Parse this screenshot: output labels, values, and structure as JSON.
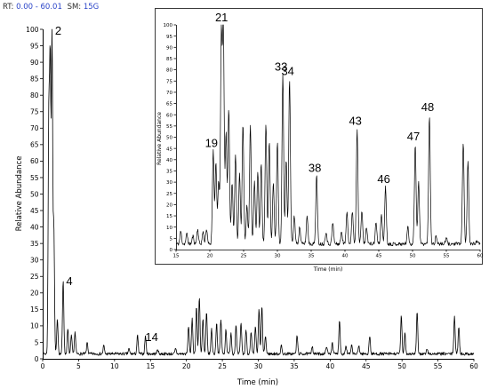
{
  "header": {
    "rt_label": "RT:",
    "rt_value": "0.00 - 60.01",
    "sm_label": "SM:",
    "sm_value": "15G"
  },
  "colors": {
    "header_label": "#2a2a2a",
    "header_value": "#2a44c8",
    "trace": "#000000",
    "inset_border": "#3a3a3a"
  },
  "chart_data": [
    {
      "type": "line",
      "xlabel": "Time (min)",
      "ylabel": "Relative Abundance",
      "xlim": [
        0,
        60
      ],
      "ylim": [
        0,
        100
      ],
      "xticks": [
        0,
        5,
        10,
        15,
        20,
        25,
        30,
        35,
        40,
        45,
        50,
        55,
        60
      ],
      "yticks": [
        0,
        5,
        10,
        15,
        20,
        25,
        30,
        35,
        40,
        45,
        50,
        55,
        60,
        65,
        70,
        75,
        80,
        85,
        90,
        95,
        100
      ],
      "baseline": 1.5,
      "peaks": [
        {
          "x": 0.85,
          "y": 72
        },
        {
          "x": 1.05,
          "y": 88
        },
        {
          "x": 1.3,
          "y": 100
        },
        {
          "x": 1.55,
          "y": 40
        },
        {
          "x": 2.05,
          "y": 12
        },
        {
          "x": 2.85,
          "y": 24
        },
        {
          "x": 3.5,
          "y": 9
        },
        {
          "x": 4.0,
          "y": 7
        },
        {
          "x": 4.5,
          "y": 8
        },
        {
          "x": 6.2,
          "y": 5
        },
        {
          "x": 8.5,
          "y": 4
        },
        {
          "x": 12.0,
          "y": 3
        },
        {
          "x": 13.2,
          "y": 7
        },
        {
          "x": 14.3,
          "y": 7
        },
        {
          "x": 16.0,
          "y": 3
        },
        {
          "x": 18.5,
          "y": 3
        },
        {
          "x": 20.3,
          "y": 10
        },
        {
          "x": 20.8,
          "y": 12
        },
        {
          "x": 21.4,
          "y": 16
        },
        {
          "x": 21.8,
          "y": 19
        },
        {
          "x": 22.3,
          "y": 12
        },
        {
          "x": 22.8,
          "y": 14
        },
        {
          "x": 23.5,
          "y": 9
        },
        {
          "x": 24.2,
          "y": 11
        },
        {
          "x": 24.8,
          "y": 12
        },
        {
          "x": 25.5,
          "y": 9
        },
        {
          "x": 26.2,
          "y": 8
        },
        {
          "x": 26.9,
          "y": 10
        },
        {
          "x": 27.6,
          "y": 11
        },
        {
          "x": 28.3,
          "y": 9
        },
        {
          "x": 29.0,
          "y": 8
        },
        {
          "x": 29.6,
          "y": 10
        },
        {
          "x": 30.1,
          "y": 15
        },
        {
          "x": 30.5,
          "y": 16
        },
        {
          "x": 31.0,
          "y": 7
        },
        {
          "x": 33.2,
          "y": 4
        },
        {
          "x": 35.4,
          "y": 7
        },
        {
          "x": 37.5,
          "y": 4
        },
        {
          "x": 39.5,
          "y": 4
        },
        {
          "x": 40.3,
          "y": 5
        },
        {
          "x": 41.3,
          "y": 12
        },
        {
          "x": 42.2,
          "y": 4
        },
        {
          "x": 43.0,
          "y": 4
        },
        {
          "x": 44.0,
          "y": 4
        },
        {
          "x": 45.5,
          "y": 7
        },
        {
          "x": 49.9,
          "y": 13
        },
        {
          "x": 50.4,
          "y": 8
        },
        {
          "x": 52.1,
          "y": 14
        },
        {
          "x": 53.5,
          "y": 3
        },
        {
          "x": 57.3,
          "y": 13
        },
        {
          "x": 57.9,
          "y": 10
        }
      ],
      "peak_labels": [
        {
          "text": "2",
          "x": 1.3,
          "y": 100
        },
        {
          "text": "4",
          "x": 2.85,
          "y": 24
        },
        {
          "text": "14",
          "x": 14.3,
          "y": 7
        }
      ]
    },
    {
      "type": "line",
      "xlabel": "Time (min)",
      "ylabel": "Relative Abundance",
      "xlim": [
        15,
        60
      ],
      "ylim": [
        0,
        100
      ],
      "xticks": [
        15,
        20,
        25,
        30,
        35,
        40,
        45,
        50,
        55,
        60
      ],
      "yticks": [
        0,
        5,
        10,
        15,
        20,
        25,
        30,
        35,
        40,
        45,
        50,
        55,
        60,
        65,
        70,
        75,
        80,
        85,
        90,
        95,
        100
      ],
      "baseline": 2.5,
      "peaks": [
        {
          "x": 15.7,
          "y": 8
        },
        {
          "x": 16.6,
          "y": 7
        },
        {
          "x": 17.5,
          "y": 6
        },
        {
          "x": 18.2,
          "y": 9
        },
        {
          "x": 19.0,
          "y": 8
        },
        {
          "x": 19.5,
          "y": 9
        },
        {
          "x": 20.5,
          "y": 44
        },
        {
          "x": 20.9,
          "y": 38
        },
        {
          "x": 21.3,
          "y": 30
        },
        {
          "x": 21.7,
          "y": 95
        },
        {
          "x": 22.0,
          "y": 100
        },
        {
          "x": 22.4,
          "y": 52
        },
        {
          "x": 22.8,
          "y": 62
        },
        {
          "x": 23.3,
          "y": 30
        },
        {
          "x": 23.8,
          "y": 42
        },
        {
          "x": 24.4,
          "y": 34
        },
        {
          "x": 24.9,
          "y": 56
        },
        {
          "x": 25.5,
          "y": 20
        },
        {
          "x": 26.0,
          "y": 55
        },
        {
          "x": 26.6,
          "y": 30
        },
        {
          "x": 27.1,
          "y": 35
        },
        {
          "x": 27.6,
          "y": 38
        },
        {
          "x": 28.3,
          "y": 56
        },
        {
          "x": 28.8,
          "y": 48
        },
        {
          "x": 29.4,
          "y": 30
        },
        {
          "x": 30.0,
          "y": 48
        },
        {
          "x": 30.8,
          "y": 78
        },
        {
          "x": 31.3,
          "y": 40
        },
        {
          "x": 31.8,
          "y": 76
        },
        {
          "x": 32.5,
          "y": 15
        },
        {
          "x": 33.3,
          "y": 10
        },
        {
          "x": 34.4,
          "y": 15
        },
        {
          "x": 35.8,
          "y": 33
        },
        {
          "x": 37.2,
          "y": 8
        },
        {
          "x": 38.2,
          "y": 12
        },
        {
          "x": 39.5,
          "y": 8
        },
        {
          "x": 40.3,
          "y": 17
        },
        {
          "x": 41.1,
          "y": 17
        },
        {
          "x": 41.8,
          "y": 54
        },
        {
          "x": 42.5,
          "y": 17
        },
        {
          "x": 43.2,
          "y": 10
        },
        {
          "x": 44.6,
          "y": 12
        },
        {
          "x": 45.4,
          "y": 16
        },
        {
          "x": 46.0,
          "y": 28
        },
        {
          "x": 49.3,
          "y": 10
        },
        {
          "x": 50.4,
          "y": 47
        },
        {
          "x": 50.9,
          "y": 30
        },
        {
          "x": 52.5,
          "y": 60
        },
        {
          "x": 53.5,
          "y": 6
        },
        {
          "x": 55.0,
          "y": 5
        },
        {
          "x": 57.5,
          "y": 48
        },
        {
          "x": 58.2,
          "y": 39
        },
        {
          "x": 59.5,
          "y": 4
        }
      ],
      "peak_labels": [
        {
          "text": "19",
          "x": 20.5,
          "y": 44
        },
        {
          "text": "21",
          "x": 22.0,
          "y": 100
        },
        {
          "text": "33",
          "x": 30.8,
          "y": 78
        },
        {
          "text": "34",
          "x": 31.8,
          "y": 76
        },
        {
          "text": "38",
          "x": 35.8,
          "y": 33
        },
        {
          "text": "43",
          "x": 41.8,
          "y": 54
        },
        {
          "text": "46",
          "x": 46.0,
          "y": 28
        },
        {
          "text": "47",
          "x": 50.4,
          "y": 47
        },
        {
          "text": "48",
          "x": 52.5,
          "y": 60
        }
      ]
    }
  ]
}
